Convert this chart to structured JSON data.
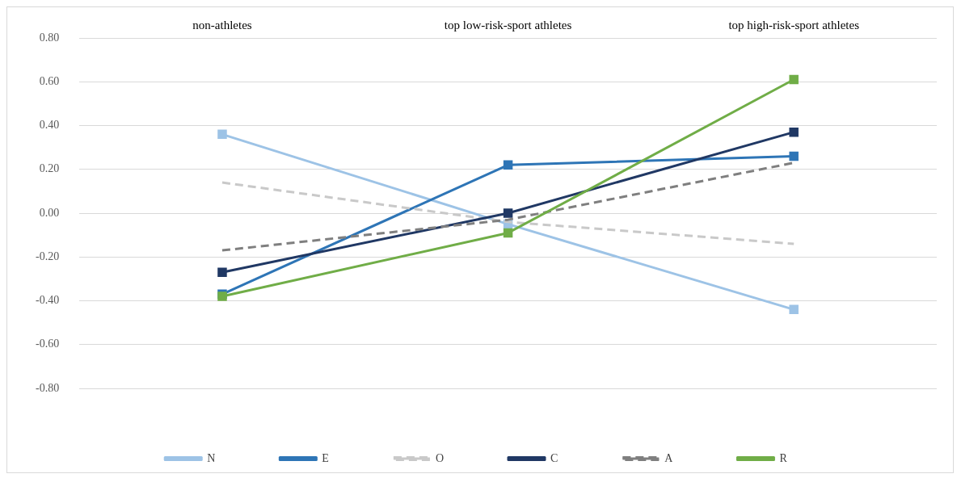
{
  "chart_data": {
    "type": "line",
    "categories": [
      "non-athletes",
      "top low-risk-sport athletes",
      "top high-risk-sport athletes"
    ],
    "series": [
      {
        "name": "N",
        "color": "#9dc3e6",
        "values": [
          0.36,
          -0.05,
          -0.44
        ],
        "marker": "square",
        "line_style": "solid"
      },
      {
        "name": "E",
        "color": "#2e75b6",
        "values": [
          -0.37,
          0.22,
          0.26
        ],
        "marker": "square",
        "line_style": "solid"
      },
      {
        "name": "O",
        "color": "#c9c9c9",
        "values": [
          0.14,
          -0.04,
          -0.14
        ],
        "marker": "none",
        "line_style": "dashed"
      },
      {
        "name": "C",
        "color": "#203864",
        "values": [
          -0.27,
          0.0,
          0.37
        ],
        "marker": "square",
        "line_style": "solid"
      },
      {
        "name": "A",
        "color": "#7f7f7f",
        "values": [
          -0.17,
          -0.03,
          0.23
        ],
        "marker": "none",
        "line_style": "dashed"
      },
      {
        "name": "R",
        "color": "#70ad47",
        "values": [
          -0.38,
          -0.09,
          0.61
        ],
        "marker": "square",
        "line_style": "solid"
      }
    ],
    "ylim": [
      -0.8,
      0.8
    ],
    "yticks": [
      {
        "value": 0.8,
        "label": "0.80"
      },
      {
        "value": 0.6,
        "label": "0.60"
      },
      {
        "value": 0.4,
        "label": "0.40"
      },
      {
        "value": 0.2,
        "label": "0.20"
      },
      {
        "value": 0,
        "label": "0.00"
      },
      {
        "value": -0.2,
        "label": "-0.20"
      },
      {
        "value": -0.4,
        "label": "-0.40"
      },
      {
        "value": -0.6,
        "label": "-0.60"
      },
      {
        "value": -0.8,
        "label": "-0.80"
      }
    ],
    "grid": "y",
    "legend": "bottom"
  }
}
